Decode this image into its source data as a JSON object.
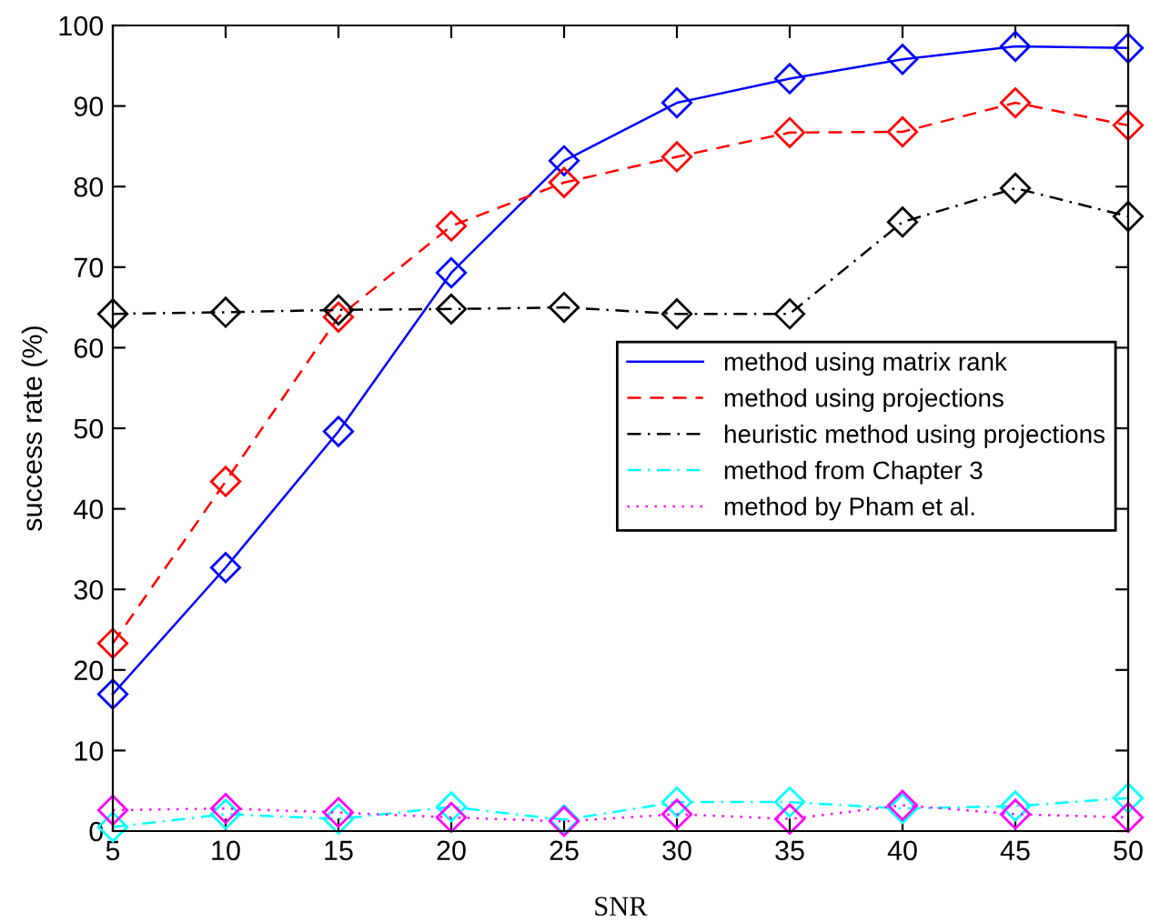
{
  "chart_data": {
    "type": "line",
    "xlabel": "SNR",
    "ylabel": "success rate (%)",
    "x": [
      5,
      10,
      15,
      20,
      25,
      30,
      35,
      40,
      45,
      50
    ],
    "xlim": [
      5,
      50
    ],
    "xticks": [
      5,
      10,
      15,
      20,
      25,
      30,
      35,
      40,
      45,
      50
    ],
    "ylim": [
      0,
      100
    ],
    "yticks": [
      0,
      10,
      20,
      30,
      40,
      50,
      60,
      70,
      80,
      90,
      100
    ],
    "grid": false,
    "legend": "right",
    "marker": "diamond",
    "series": [
      {
        "name": "method using matrix rank",
        "color": "#0000ff",
        "line_style": "solid",
        "values": [
          17,
          32.7,
          49.6,
          69.3,
          83.2,
          90.4,
          93.4,
          95.8,
          97.4,
          97.2
        ]
      },
      {
        "name": "method using projections",
        "color": "#ff0000",
        "line_style": "dashed",
        "values": [
          23.3,
          43.4,
          63.8,
          75.1,
          80.5,
          83.7,
          86.7,
          86.8,
          90.4,
          87.6
        ]
      },
      {
        "name": "heuristic method using projections",
        "color": "#000000",
        "line_style": "dashdot",
        "values": [
          64.2,
          64.4,
          64.7,
          64.8,
          65,
          64.2,
          64.2,
          75.6,
          79.8,
          76.3
        ]
      },
      {
        "name": "method from Chapter 3",
        "color": "#00ffff",
        "line_style": "dashdot",
        "values": [
          0.5,
          2.1,
          1.5,
          3.0,
          1.4,
          3.6,
          3.6,
          2.8,
          3.1,
          4.1
        ]
      },
      {
        "name": "method by Pham et al.",
        "color": "#ff00ff",
        "line_style": "dotted",
        "values": [
          2.6,
          2.8,
          2.3,
          1.7,
          1.2,
          2.1,
          1.5,
          3.2,
          2.1,
          1.7
        ]
      }
    ]
  }
}
